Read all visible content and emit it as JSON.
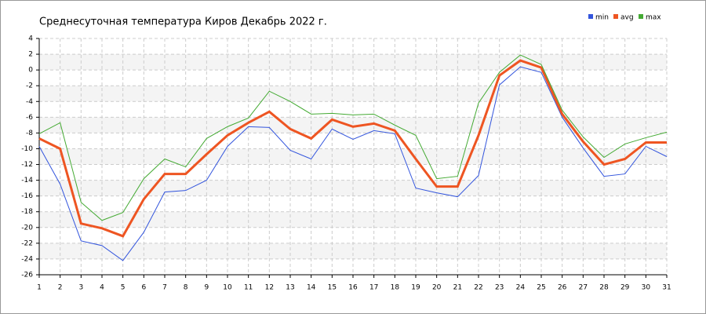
{
  "chart_data": {
    "type": "line",
    "title": "Среднесуточная температура Киров  Декабрь 2022 г.",
    "x": [
      1,
      2,
      3,
      4,
      5,
      6,
      7,
      8,
      9,
      10,
      11,
      12,
      13,
      14,
      15,
      16,
      17,
      18,
      19,
      20,
      21,
      22,
      23,
      24,
      25,
      26,
      27,
      28,
      29,
      30,
      31
    ],
    "xlim": [
      1,
      31
    ],
    "xticks": [
      1,
      2,
      3,
      4,
      5,
      6,
      7,
      8,
      9,
      10,
      11,
      12,
      13,
      14,
      15,
      16,
      17,
      18,
      19,
      20,
      21,
      22,
      23,
      24,
      25,
      26,
      27,
      28,
      29,
      30,
      31
    ],
    "ylim": [
      -26,
      4
    ],
    "yticks": [
      4,
      2,
      0,
      -2,
      -4,
      -6,
      -8,
      -10,
      -12,
      -14,
      -16,
      -18,
      -20,
      -22,
      -24,
      -26
    ],
    "grid": true,
    "legend": "top-right",
    "series": [
      {
        "name": "min",
        "color": "#3355dd",
        "values": [
          -9.7,
          -14.5,
          -21.7,
          -22.3,
          -24.2,
          -20.6,
          -15.5,
          -15.3,
          -14.0,
          -9.7,
          -7.2,
          -7.3,
          -10.2,
          -11.3,
          -7.5,
          -8.8,
          -7.7,
          -8.1,
          -15.0,
          -15.6,
          -16.1,
          -13.4,
          -1.9,
          0.4,
          -0.3,
          -6.0,
          -9.9,
          -13.5,
          -13.2,
          -9.7,
          -11.0
        ]
      },
      {
        "name": "avg",
        "color": "#ee5522",
        "values": [
          -8.7,
          -10.0,
          -19.5,
          -20.1,
          -21.1,
          -16.4,
          -13.2,
          -13.2,
          -10.7,
          -8.3,
          -6.7,
          -5.3,
          -7.5,
          -8.7,
          -6.3,
          -7.2,
          -6.8,
          -7.7,
          -11.3,
          -14.8,
          -14.8,
          -8.3,
          -0.7,
          1.2,
          0.3,
          -5.6,
          -9.1,
          -12.0,
          -11.3,
          -9.2,
          -9.2
        ]
      },
      {
        "name": "max",
        "color": "#44aa33",
        "values": [
          -8.1,
          -6.7,
          -16.8,
          -19.1,
          -18.1,
          -13.8,
          -11.3,
          -12.3,
          -8.7,
          -7.2,
          -6.1,
          -2.7,
          -4.0,
          -5.6,
          -5.5,
          -5.7,
          -5.6,
          -7.0,
          -8.3,
          -13.8,
          -13.5,
          -4.2,
          -0.3,
          1.9,
          0.7,
          -5.1,
          -8.5,
          -11.1,
          -9.4,
          -8.6,
          -7.9
        ]
      }
    ]
  }
}
